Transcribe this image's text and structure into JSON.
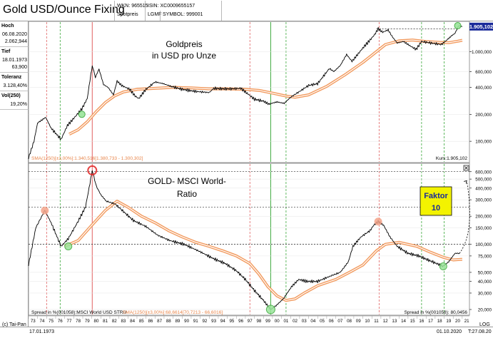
{
  "header": {
    "title": "Gold USD/Ounce Fixing",
    "wkn": "WKN: 965515",
    "type": "Spotpreis",
    "isin": "ISIN: XC0009655157",
    "exchange": "LGMF",
    "symbol": "SYMBOL: 999001"
  },
  "sidebar": {
    "items": [
      {
        "label": "Hoch",
        "values": [
          "06.08.2020",
          "2.062,944"
        ]
      },
      {
        "label": "Tief",
        "values": [
          "18.01.1973",
          "63,900"
        ]
      },
      {
        "label": "Toleranz",
        "values": [
          "3.128,40%"
        ]
      },
      {
        "label": "Vol(250)",
        "values": [
          "19,20%"
        ]
      }
    ]
  },
  "footer": {
    "copyright": "(c) Tai-Pan",
    "start_date": "17.01.1973",
    "end_date": "01.10.2020",
    "end_time": "T:27.08.20",
    "log_label": "LOG"
  },
  "colors": {
    "price": "#000000",
    "sma": "#f29a5e",
    "red_line": "#e06060",
    "green_line": "#3aa83a",
    "badge": "#1a2a9a",
    "faktor_box": "#f3f300"
  },
  "chart_data": [
    {
      "type": "line",
      "title": "Goldpreis\nin USD pro Unze",
      "scale": "log",
      "x_range": [
        1973.0,
        2021.8
      ],
      "ylim": [
        60,
        2100
      ],
      "y_ticks": [
        {
          "v": 100,
          "label": "100,000"
        },
        {
          "v": 200,
          "label": "200,000"
        },
        {
          "v": 400,
          "label": "400,000"
        },
        {
          "v": 600,
          "label": "600,000"
        },
        {
          "v": 1000,
          "label": "1.000,000"
        }
      ],
      "current_value_label": "1.905,102",
      "current_value": 1905,
      "indicator_label": "SMA(1250)[±3,00%]:1.340,516[1.380,733 - 1.300,302]",
      "kurs_label": "Kurs:1.905,102",
      "price": {
        "x": [
          1973.0,
          1973.6,
          1974.0,
          1974.9,
          1975.5,
          1976.6,
          1977.3,
          1978.0,
          1978.9,
          1979.5,
          1979.9,
          1980.05,
          1980.4,
          1980.8,
          1981.3,
          1981.8,
          1982.4,
          1982.8,
          1983.3,
          1984.2,
          1984.8,
          1985.2,
          1986.0,
          1987.0,
          1987.9,
          1988.8,
          1990.0,
          1991.5,
          1993.0,
          1993.5,
          1994.5,
          1995.5,
          1996.5,
          1997.4,
          1998.0,
          1999.0,
          1999.6,
          2000.5,
          2001.3,
          2002.0,
          2003.0,
          2004.0,
          2005.0,
          2006.3,
          2006.8,
          2007.5,
          2008.2,
          2008.8,
          2009.5,
          2010.0,
          2010.8,
          2011.3,
          2011.7,
          2012.2,
          2012.8,
          2013.3,
          2013.8,
          2014.5,
          2015.3,
          2015.9,
          2016.5,
          2017.5,
          2018.7,
          2019.3,
          2019.8,
          2020.2,
          2020.6,
          2021.0
        ],
        "y": [
          65,
          100,
          160,
          185,
          140,
          105,
          150,
          180,
          230,
          300,
          560,
          700,
          520,
          640,
          430,
          400,
          330,
          470,
          420,
          380,
          320,
          300,
          380,
          460,
          440,
          410,
          380,
          360,
          350,
          390,
          385,
          385,
          390,
          330,
          295,
          280,
          260,
          275,
          265,
          310,
          360,
          420,
          440,
          650,
          600,
          700,
          930,
          780,
          950,
          1100,
          1350,
          1550,
          1800,
          1650,
          1750,
          1450,
          1250,
          1300,
          1150,
          1060,
          1300,
          1250,
          1200,
          1350,
          1500,
          1600,
          1950,
          1905
        ]
      },
      "sma": {
        "x": [
          1977.5,
          1978.5,
          1979.5,
          1980.5,
          1981.5,
          1982.5,
          1983.5,
          1985.0,
          1987.0,
          1989.0,
          1991.0,
          1993.0,
          1995.0,
          1997.0,
          1998.5,
          2000.0,
          2001.5,
          2002.5,
          2004.0,
          2006.0,
          2008.0,
          2010.0,
          2011.5,
          2012.5,
          2014.0,
          2015.5,
          2017.0,
          2018.5,
          2019.5,
          2020.5,
          2021.0
        ],
        "y": [
          120,
          135,
          165,
          215,
          270,
          320,
          355,
          380,
          390,
          400,
          395,
          385,
          385,
          380,
          370,
          345,
          320,
          310,
          330,
          410,
          550,
          760,
          1000,
          1200,
          1320,
          1350,
          1300,
          1270,
          1260,
          1310,
          1340
        ]
      },
      "markers": [
        {
          "x": 1978.9,
          "y": 200,
          "color": "green"
        },
        {
          "x": 2020.5,
          "y": 1950,
          "color": "green"
        }
      ],
      "annotations": []
    },
    {
      "type": "line",
      "title": "GOLD- MSCI World-\nRatio",
      "scale": "log",
      "x_range": [
        1973.0,
        2021.8
      ],
      "ylim": [
        18,
        700
      ],
      "y_ticks": [
        {
          "v": 20,
          "label": "20,000"
        },
        {
          "v": 30,
          "label": "30,000"
        },
        {
          "v": 40,
          "label": "40,000"
        },
        {
          "v": 50,
          "label": "50,000"
        },
        {
          "v": 75,
          "label": "75,000"
        },
        {
          "v": 100,
          "label": "100,000"
        },
        {
          "v": 150,
          "label": "150,000"
        },
        {
          "v": 200,
          "label": "200,000"
        },
        {
          "v": 300,
          "label": "300,000"
        },
        {
          "v": 400,
          "label": "400,000"
        },
        {
          "v": 500,
          "label": "500,000"
        },
        {
          "v": 600,
          "label": "600,000"
        }
      ],
      "indicator_left": "Spread in %(001058):MSCI World USD STRD",
      "indicator_sma": "SMA(1250)[±3,00%]:68,6614[70,7213 - 66,6016]",
      "indicator_right": "Spread in %(001058): 80,0456",
      "ratio": {
        "x": [
          1973.0,
          1973.8,
          1974.8,
          1975.5,
          1976.6,
          1977.4,
          1978.4,
          1979.3,
          1979.8,
          1980.05,
          1980.5,
          1981.0,
          1981.6,
          1982.6,
          1983.6,
          1984.6,
          1986.0,
          1987.3,
          1988.6,
          1990.2,
          1991.8,
          1993.5,
          1994.8,
          1996.0,
          1997.0,
          1998.0,
          1999.0,
          1999.8,
          2000.4,
          2001.2,
          2002.1,
          2002.9,
          2003.8,
          2005.0,
          2006.5,
          2007.5,
          2008.4,
          2008.9,
          2009.8,
          2010.8,
          2011.2,
          2011.7,
          2012.3,
          2013.0,
          2013.8,
          2015.0,
          2016.2,
          2017.2,
          2018.2,
          2018.9,
          2019.5,
          2020.2,
          2020.7
        ],
        "y": [
          60,
          150,
          230,
          170,
          95,
          115,
          170,
          250,
          450,
          620,
          420,
          340,
          290,
          270,
          220,
          180,
          155,
          125,
          110,
          100,
          85,
          70,
          62,
          52,
          42,
          32,
          25,
          20,
          22,
          26,
          35,
          42,
          40,
          40,
          46,
          50,
          65,
          95,
          120,
          140,
          160,
          175,
          160,
          120,
          95,
          80,
          75,
          68,
          62,
          58,
          65,
          80,
          80
        ]
      },
      "sma": {
        "x": [
          1977.0,
          1978.5,
          1980.0,
          1981.5,
          1982.8,
          1984.0,
          1985.5,
          1987.0,
          1988.5,
          1990.0,
          1991.5,
          1993.0,
          1994.5,
          1996.0,
          1997.5,
          1998.5,
          1999.5,
          2000.5,
          2001.5,
          2002.5,
          2003.5,
          2005.0,
          2007.0,
          2008.5,
          2010.0,
          2011.5,
          2012.5,
          2014.0,
          2016.0,
          2017.5,
          2019.0,
          2020.0,
          2021.0
        ],
        "y": [
          95,
          110,
          160,
          230,
          290,
          250,
          200,
          170,
          140,
          120,
          105,
          95,
          85,
          75,
          62,
          48,
          35,
          28,
          25,
          26,
          30,
          36,
          42,
          50,
          60,
          85,
          100,
          105,
          95,
          82,
          72,
          68,
          69
        ]
      },
      "projection": {
        "x": [
          2020.7,
          2021.5
        ],
        "y": [
          80,
          480
        ]
      },
      "markers": [
        {
          "x": 1980.05,
          "y": 620,
          "color": "red"
        },
        {
          "x": 1974.8,
          "y": 230,
          "color": "salmon"
        },
        {
          "x": 1977.4,
          "y": 95,
          "color": "green"
        },
        {
          "x": 1999.8,
          "y": 20,
          "color": "green"
        },
        {
          "x": 2011.7,
          "y": 175,
          "color": "salmon"
        },
        {
          "x": 2018.9,
          "y": 58,
          "color": "green"
        }
      ],
      "annotations": [
        {
          "text": "Faktor\n10"
        }
      ]
    }
  ],
  "x_axis": {
    "year_labels": [
      "73",
      "74",
      "75",
      "76",
      "77",
      "78",
      "79",
      "80",
      "81",
      "82",
      "83",
      "84",
      "85",
      "86",
      "87",
      "88",
      "89",
      "90",
      "91",
      "92",
      "93",
      "94",
      "95",
      "96",
      "97",
      "98",
      "99",
      "00",
      "01",
      "02",
      "03",
      "04",
      "05",
      "06",
      "07",
      "08",
      "09",
      "10",
      "11",
      "12",
      "13",
      "14",
      "15",
      "16",
      "17",
      "18",
      "19",
      "20",
      "21"
    ],
    "start_year": 1973
  },
  "vertical_lines": {
    "red_dashed": [
      1975.0,
      1997.5,
      2011.8
    ],
    "red_solid": [
      1980.05
    ],
    "green_dashed": [
      1976.5,
      2001.5,
      2016.5,
      2019.0
    ],
    "green_solid": [
      1999.8
    ]
  }
}
